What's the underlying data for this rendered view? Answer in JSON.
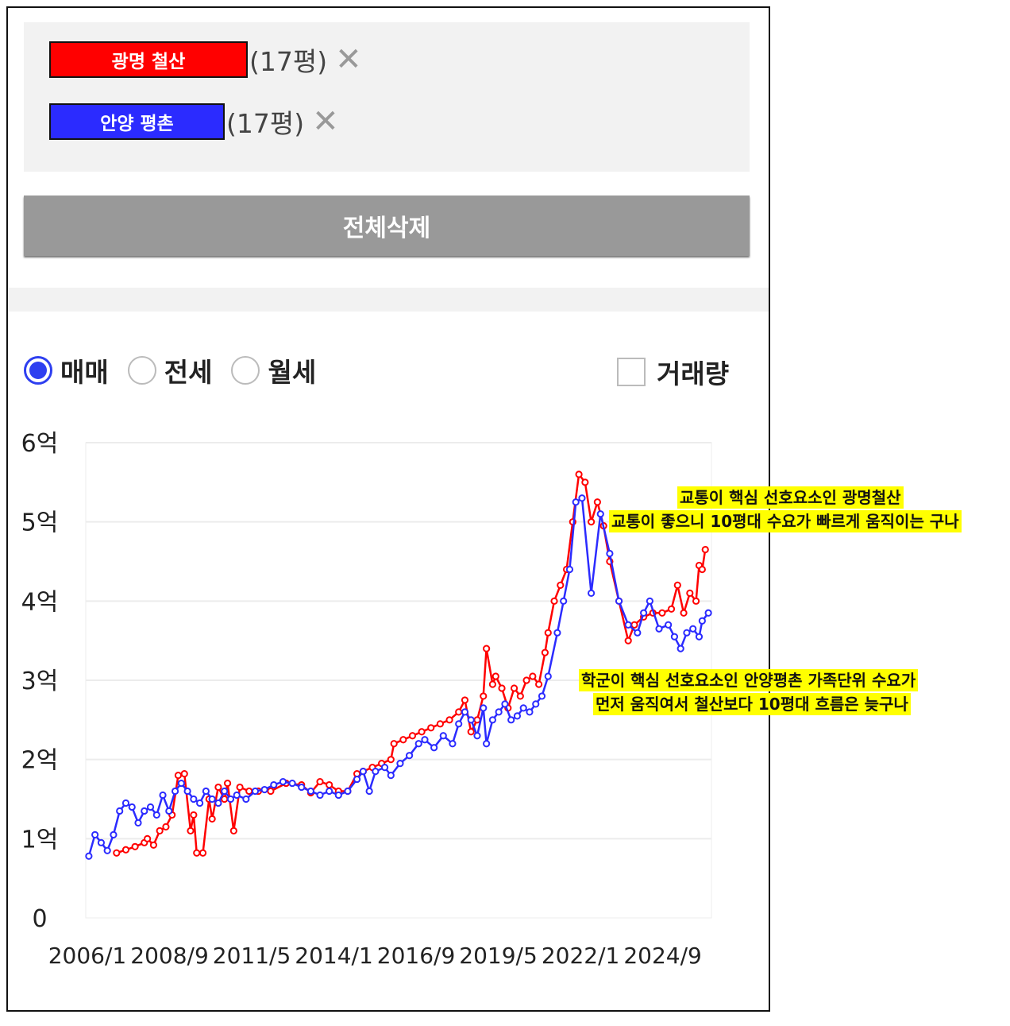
{
  "compare": {
    "items": [
      {
        "name": "광명 철산",
        "size": "(17평)",
        "color": "#ff0000",
        "close_icon": "close-icon"
      },
      {
        "name": "안양 평촌",
        "size": "(17평)",
        "color": "#2b2bff",
        "close_icon": "close-icon"
      }
    ],
    "delete_all_label": "전체삭제"
  },
  "filters": {
    "trade_types": [
      {
        "label": "매매",
        "selected": true
      },
      {
        "label": "전세",
        "selected": false
      },
      {
        "label": "월세",
        "selected": false
      }
    ],
    "volume_label": "거래량",
    "volume_checked": false
  },
  "annotations": {
    "top": [
      "교통이 핵심 선호요소인 광명철산",
      "교통이 좋으니 10평대 수요가 빠르게 움직이는 구나"
    ],
    "bottom": [
      "학군이 핵심 선호요소인 안양평촌 가족단위 수요가",
      "먼저 움직여서 철산보다 10평대 흐름은 늦구나"
    ],
    "highlight_color": "#ffff00"
  },
  "chart_data": {
    "type": "line",
    "y_tick_labels": [
      "0",
      "1억",
      "2억",
      "3억",
      "4억",
      "5억",
      "6억"
    ],
    "y_ticks": [
      0,
      1,
      2,
      3,
      4,
      5,
      6
    ],
    "ylim": [
      0,
      6
    ],
    "x_tick_labels": [
      "2006/1",
      "2008/9",
      "2011/5",
      "2014/1",
      "2016/9",
      "2019/5",
      "2022/1",
      "2024/9"
    ],
    "x_ticks": [
      2006.0,
      2008.667,
      2011.333,
      2014.0,
      2016.667,
      2019.333,
      2022.0,
      2024.667
    ],
    "xlim": [
      2006.0,
      2026.3
    ],
    "grid": true,
    "series": [
      {
        "name": "광명 철산",
        "color": "#ff0000",
        "points": [
          [
            2007.0,
            0.82
          ],
          [
            2007.3,
            0.86
          ],
          [
            2007.6,
            0.9
          ],
          [
            2007.9,
            0.95
          ],
          [
            2008.0,
            1.0
          ],
          [
            2008.2,
            0.92
          ],
          [
            2008.4,
            1.1
          ],
          [
            2008.6,
            1.15
          ],
          [
            2008.8,
            1.3
          ],
          [
            2009.0,
            1.8
          ],
          [
            2009.2,
            1.82
          ],
          [
            2009.4,
            1.1
          ],
          [
            2009.5,
            1.3
          ],
          [
            2009.6,
            0.82
          ],
          [
            2009.8,
            0.82
          ],
          [
            2010.0,
            1.5
          ],
          [
            2010.1,
            1.25
          ],
          [
            2010.3,
            1.65
          ],
          [
            2010.5,
            1.5
          ],
          [
            2010.6,
            1.7
          ],
          [
            2010.8,
            1.1
          ],
          [
            2011.0,
            1.65
          ],
          [
            2011.3,
            1.6
          ],
          [
            2011.6,
            1.6
          ],
          [
            2012.0,
            1.6
          ],
          [
            2012.5,
            1.7
          ],
          [
            2013.0,
            1.68
          ],
          [
            2013.3,
            1.58
          ],
          [
            2013.6,
            1.72
          ],
          [
            2013.9,
            1.68
          ],
          [
            2014.2,
            1.6
          ],
          [
            2014.5,
            1.6
          ],
          [
            2014.8,
            1.82
          ],
          [
            2015.0,
            1.85
          ],
          [
            2015.3,
            1.9
          ],
          [
            2015.6,
            1.95
          ],
          [
            2015.9,
            2.0
          ],
          [
            2016.0,
            2.2
          ],
          [
            2016.3,
            2.25
          ],
          [
            2016.6,
            2.3
          ],
          [
            2016.9,
            2.35
          ],
          [
            2017.2,
            2.4
          ],
          [
            2017.5,
            2.45
          ],
          [
            2017.8,
            2.5
          ],
          [
            2018.1,
            2.6
          ],
          [
            2018.3,
            2.75
          ],
          [
            2018.5,
            2.35
          ],
          [
            2018.7,
            2.5
          ],
          [
            2018.9,
            2.8
          ],
          [
            2019.0,
            3.4
          ],
          [
            2019.2,
            2.95
          ],
          [
            2019.3,
            3.05
          ],
          [
            2019.5,
            2.9
          ],
          [
            2019.7,
            2.65
          ],
          [
            2019.9,
            2.9
          ],
          [
            2020.1,
            2.8
          ],
          [
            2020.3,
            3.0
          ],
          [
            2020.5,
            3.05
          ],
          [
            2020.7,
            2.95
          ],
          [
            2020.9,
            3.35
          ],
          [
            2021.0,
            3.6
          ],
          [
            2021.2,
            4.0
          ],
          [
            2021.4,
            4.2
          ],
          [
            2021.6,
            4.4
          ],
          [
            2021.8,
            5.0
          ],
          [
            2022.0,
            5.6
          ],
          [
            2022.2,
            5.5
          ],
          [
            2022.4,
            5.0
          ],
          [
            2022.6,
            5.25
          ],
          [
            2022.8,
            4.95
          ],
          [
            2023.0,
            4.5
          ],
          [
            2023.3,
            4.0
          ],
          [
            2023.6,
            3.5
          ],
          [
            2023.8,
            3.7
          ],
          [
            2024.1,
            3.8
          ],
          [
            2024.4,
            3.85
          ],
          [
            2024.7,
            3.85
          ],
          [
            2025.0,
            3.9
          ],
          [
            2025.2,
            4.2
          ],
          [
            2025.4,
            3.85
          ],
          [
            2025.6,
            4.1
          ],
          [
            2025.8,
            4.0
          ],
          [
            2025.9,
            4.45
          ],
          [
            2026.0,
            4.4
          ],
          [
            2026.1,
            4.65
          ]
        ]
      },
      {
        "name": "안양 평촌",
        "color": "#2b2bff",
        "points": [
          [
            2006.1,
            0.78
          ],
          [
            2006.3,
            1.05
          ],
          [
            2006.5,
            0.95
          ],
          [
            2006.7,
            0.85
          ],
          [
            2006.9,
            1.05
          ],
          [
            2007.1,
            1.35
          ],
          [
            2007.3,
            1.45
          ],
          [
            2007.5,
            1.4
          ],
          [
            2007.7,
            1.2
          ],
          [
            2007.9,
            1.35
          ],
          [
            2008.1,
            1.4
          ],
          [
            2008.3,
            1.3
          ],
          [
            2008.5,
            1.55
          ],
          [
            2008.7,
            1.35
          ],
          [
            2008.9,
            1.6
          ],
          [
            2009.1,
            1.7
          ],
          [
            2009.3,
            1.6
          ],
          [
            2009.5,
            1.5
          ],
          [
            2009.7,
            1.45
          ],
          [
            2009.9,
            1.6
          ],
          [
            2010.1,
            1.5
          ],
          [
            2010.3,
            1.45
          ],
          [
            2010.5,
            1.6
          ],
          [
            2010.7,
            1.5
          ],
          [
            2010.9,
            1.55
          ],
          [
            2011.2,
            1.5
          ],
          [
            2011.5,
            1.6
          ],
          [
            2011.8,
            1.62
          ],
          [
            2012.1,
            1.68
          ],
          [
            2012.4,
            1.72
          ],
          [
            2012.7,
            1.7
          ],
          [
            2013.0,
            1.65
          ],
          [
            2013.3,
            1.6
          ],
          [
            2013.6,
            1.55
          ],
          [
            2013.9,
            1.6
          ],
          [
            2014.2,
            1.55
          ],
          [
            2014.5,
            1.6
          ],
          [
            2014.8,
            1.75
          ],
          [
            2015.0,
            1.85
          ],
          [
            2015.2,
            1.6
          ],
          [
            2015.4,
            1.85
          ],
          [
            2015.7,
            1.9
          ],
          [
            2015.9,
            1.8
          ],
          [
            2016.2,
            1.95
          ],
          [
            2016.5,
            2.05
          ],
          [
            2016.8,
            2.2
          ],
          [
            2017.0,
            2.25
          ],
          [
            2017.3,
            2.15
          ],
          [
            2017.6,
            2.3
          ],
          [
            2017.9,
            2.2
          ],
          [
            2018.1,
            2.45
          ],
          [
            2018.3,
            2.6
          ],
          [
            2018.5,
            2.5
          ],
          [
            2018.7,
            2.3
          ],
          [
            2018.9,
            2.65
          ],
          [
            2019.0,
            2.2
          ],
          [
            2019.2,
            2.5
          ],
          [
            2019.4,
            2.6
          ],
          [
            2019.6,
            2.7
          ],
          [
            2019.8,
            2.5
          ],
          [
            2020.0,
            2.55
          ],
          [
            2020.2,
            2.65
          ],
          [
            2020.4,
            2.6
          ],
          [
            2020.6,
            2.7
          ],
          [
            2020.8,
            2.8
          ],
          [
            2021.0,
            3.05
          ],
          [
            2021.3,
            3.6
          ],
          [
            2021.5,
            4.0
          ],
          [
            2021.7,
            4.4
          ],
          [
            2021.9,
            5.25
          ],
          [
            2022.1,
            5.3
          ],
          [
            2022.4,
            4.1
          ],
          [
            2022.7,
            5.1
          ],
          [
            2023.0,
            4.6
          ],
          [
            2023.3,
            4.0
          ],
          [
            2023.6,
            3.7
          ],
          [
            2023.9,
            3.6
          ],
          [
            2024.1,
            3.85
          ],
          [
            2024.3,
            4.0
          ],
          [
            2024.6,
            3.65
          ],
          [
            2024.9,
            3.7
          ],
          [
            2025.1,
            3.55
          ],
          [
            2025.3,
            3.4
          ],
          [
            2025.5,
            3.6
          ],
          [
            2025.7,
            3.65
          ],
          [
            2025.9,
            3.55
          ],
          [
            2026.0,
            3.75
          ],
          [
            2026.2,
            3.85
          ]
        ]
      }
    ]
  }
}
